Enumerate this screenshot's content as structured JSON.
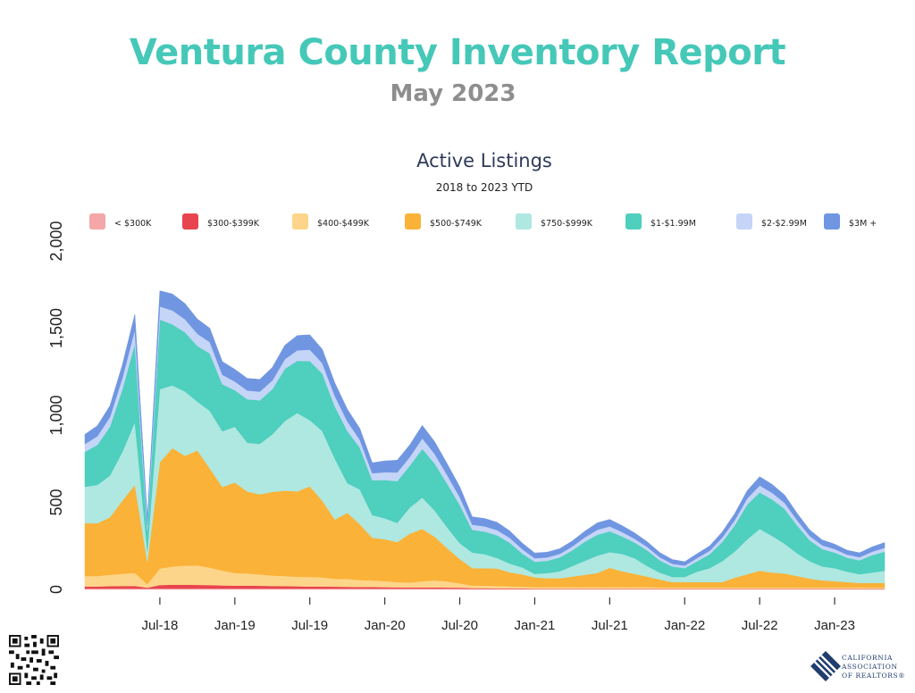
{
  "header": {
    "title": "Ventura County Inventory Report",
    "subtitle": "May 2023"
  },
  "chart_data": {
    "type": "area",
    "stacked": true,
    "title": "Active Listings",
    "subtitle": "2018 to 2023 YTD",
    "xlabel": "",
    "ylabel": "",
    "ylim": [
      0,
      2000
    ],
    "yticks": [
      0,
      500,
      1000,
      1500,
      2000
    ],
    "ytick_labels": [
      "0",
      "500",
      "1,000",
      "1,500",
      "2,000"
    ],
    "grid": false,
    "legend_position": "top",
    "x_tick_labels": [
      {
        "index": 6,
        "label": "Jul-18"
      },
      {
        "index": 12,
        "label": "Jan-19"
      },
      {
        "index": 18,
        "label": "Jul-19"
      },
      {
        "index": 24,
        "label": "Jan-20"
      },
      {
        "index": 30,
        "label": "Jul-20"
      },
      {
        "index": 36,
        "label": "Jan-21"
      },
      {
        "index": 42,
        "label": "Jul-21"
      },
      {
        "index": 48,
        "label": "Jan-22"
      },
      {
        "index": 54,
        "label": "Jul-22"
      },
      {
        "index": 60,
        "label": "Jan-23"
      }
    ],
    "x": [
      "Jan-18",
      "Feb-18",
      "Mar-18",
      "Apr-18",
      "May-18",
      "Jun-18",
      "Jul-18",
      "Aug-18",
      "Sep-18",
      "Oct-18",
      "Nov-18",
      "Dec-18",
      "Jan-19",
      "Feb-19",
      "Mar-19",
      "Apr-19",
      "May-19",
      "Jun-19",
      "Jul-19",
      "Aug-19",
      "Sep-19",
      "Oct-19",
      "Nov-19",
      "Dec-19",
      "Jan-20",
      "Feb-20",
      "Mar-20",
      "Apr-20",
      "May-20",
      "Jun-20",
      "Jul-20",
      "Aug-20",
      "Sep-20",
      "Oct-20",
      "Nov-20",
      "Dec-20",
      "Jan-21",
      "Feb-21",
      "Mar-21",
      "Apr-21",
      "May-21",
      "Jun-21",
      "Jul-21",
      "Aug-21",
      "Sep-21",
      "Oct-21",
      "Nov-21",
      "Dec-21",
      "Jan-22",
      "Feb-22",
      "Mar-22",
      "Apr-22",
      "May-22",
      "Jun-22",
      "Jul-22",
      "Aug-22",
      "Sep-22",
      "Oct-22",
      "Nov-22",
      "Dec-22",
      "Jan-23",
      "Feb-23",
      "Mar-23",
      "Apr-23",
      "May-23"
    ],
    "series": [
      {
        "name": "< $300K",
        "color": "#f4a6a8",
        "values": [
          5,
          5,
          5,
          5,
          5,
          5,
          5,
          5,
          5,
          5,
          5,
          5,
          5,
          5,
          5,
          5,
          5,
          5,
          5,
          5,
          5,
          5,
          5,
          5,
          5,
          5,
          5,
          5,
          5,
          5,
          5,
          3,
          3,
          3,
          3,
          3,
          2,
          2,
          2,
          2,
          2,
          2,
          2,
          2,
          2,
          2,
          2,
          2,
          2,
          2,
          2,
          2,
          2,
          2,
          2,
          2,
          2,
          2,
          2,
          2,
          2,
          2,
          2,
          2,
          2
        ]
      },
      {
        "name": "$300-$399K",
        "color": "#e8444f",
        "values": [
          12,
          12,
          14,
          15,
          15,
          5,
          20,
          22,
          22,
          21,
          20,
          18,
          17,
          17,
          16,
          15,
          14,
          13,
          12,
          12,
          11,
          10,
          9,
          9,
          8,
          7,
          7,
          7,
          7,
          6,
          5,
          4,
          4,
          3,
          3,
          3,
          2,
          2,
          2,
          2,
          2,
          2,
          2,
          2,
          2,
          2,
          2,
          2,
          2,
          2,
          2,
          2,
          2,
          2,
          2,
          2,
          2,
          2,
          2,
          2,
          2,
          2,
          2,
          2,
          2
        ]
      },
      {
        "name": "$400-$499K",
        "color": "#fdd58a",
        "values": [
          60,
          60,
          65,
          70,
          75,
          20,
          95,
          105,
          110,
          112,
          100,
          85,
          72,
          70,
          65,
          60,
          58,
          55,
          55,
          52,
          45,
          45,
          40,
          38,
          35,
          30,
          28,
          35,
          40,
          35,
          25,
          15,
          15,
          14,
          12,
          10,
          10,
          10,
          10,
          10,
          10,
          10,
          10,
          10,
          10,
          10,
          8,
          8,
          8,
          8,
          8,
          8,
          8,
          8,
          8,
          8,
          8,
          8,
          8,
          8,
          8,
          8,
          8,
          8,
          8
        ]
      },
      {
        "name": "$500-$749K",
        "color": "#fbb238",
        "values": [
          303,
          303,
          330,
          420,
          505,
          130,
          610,
          680,
          630,
          660,
          570,
          480,
          520,
          470,
          460,
          480,
          490,
          490,
          520,
          440,
          340,
          380,
          320,
          245,
          240,
          230,
          280,
          300,
          250,
          190,
          140,
          100,
          100,
          100,
          80,
          70,
          55,
          50,
          50,
          60,
          70,
          80,
          110,
          90,
          75,
          60,
          45,
          30,
          30,
          30,
          30,
          30,
          55,
          75,
          95,
          85,
          80,
          65,
          50,
          40,
          35,
          30,
          25,
          25,
          25
        ]
      },
      {
        "name": "$750-$999K",
        "color": "#aee8e1",
        "values": [
          210,
          220,
          240,
          280,
          360,
          60,
          420,
          360,
          370,
          280,
          330,
          320,
          320,
          280,
          290,
          330,
          400,
          450,
          380,
          400,
          350,
          170,
          200,
          130,
          120,
          110,
          150,
          180,
          150,
          120,
          90,
          90,
          80,
          60,
          50,
          40,
          20,
          30,
          40,
          60,
          80,
          100,
          90,
          100,
          90,
          60,
          40,
          30,
          30,
          60,
          80,
          120,
          150,
          200,
          240,
          210,
          170,
          130,
          100,
          80,
          75,
          60,
          50,
          60,
          70
        ]
      },
      {
        "name": "$1-$1.99M",
        "color": "#4fcfbe",
        "values": [
          200,
          230,
          280,
          360,
          450,
          120,
          400,
          350,
          340,
          320,
          330,
          270,
          210,
          250,
          250,
          260,
          300,
          300,
          340,
          330,
          300,
          300,
          240,
          200,
          220,
          240,
          240,
          280,
          270,
          250,
          220,
          130,
          130,
          130,
          120,
          80,
          70,
          70,
          80,
          90,
          110,
          120,
          120,
          100,
          90,
          90,
          70,
          60,
          50,
          60,
          80,
          110,
          150,
          200,
          210,
          210,
          200,
          160,
          120,
          100,
          90,
          80,
          80,
          100,
          110
        ]
      },
      {
        "name": "$2-$2.99M",
        "color": "#c5d5f7",
        "values": [
          45,
          50,
          55,
          65,
          80,
          30,
          75,
          80,
          75,
          70,
          65,
          55,
          50,
          50,
          50,
          50,
          55,
          60,
          65,
          60,
          60,
          55,
          45,
          40,
          45,
          50,
          50,
          60,
          55,
          50,
          45,
          30,
          30,
          30,
          28,
          25,
          20,
          20,
          20,
          22,
          25,
          28,
          28,
          25,
          22,
          20,
          18,
          15,
          15,
          18,
          20,
          25,
          30,
          35,
          40,
          38,
          35,
          30,
          25,
          22,
          20,
          18,
          18,
          20,
          22
        ]
      },
      {
        "name": "$3M +",
        "color": "#7096e2",
        "values": [
          55,
          60,
          65,
          75,
          90,
          40,
          90,
          95,
          90,
          85,
          80,
          75,
          70,
          70,
          70,
          75,
          80,
          85,
          85,
          80,
          75,
          70,
          65,
          60,
          65,
          70,
          70,
          75,
          70,
          65,
          60,
          45,
          45,
          45,
          40,
          35,
          30,
          30,
          30,
          32,
          35,
          40,
          40,
          37,
          33,
          30,
          27,
          25,
          22,
          25,
          28,
          32,
          38,
          45,
          50,
          48,
          45,
          40,
          35,
          30,
          28,
          25,
          25,
          27,
          30
        ]
      }
    ]
  },
  "footer": {
    "logo_lines": [
      "CALIFORNIA",
      "ASSOCIATION",
      "OF REALTORS®"
    ]
  }
}
